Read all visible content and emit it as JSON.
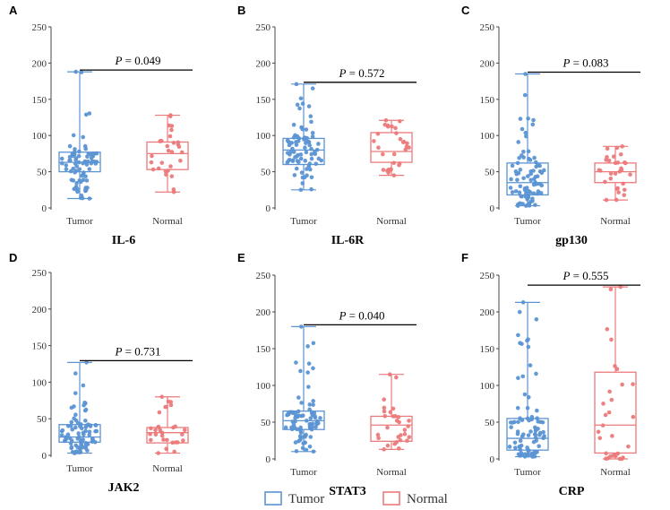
{
  "legend": {
    "items": [
      {
        "label": "Tumor",
        "color": "#5b93d3"
      },
      {
        "label": "Normal",
        "color": "#ec7a7b"
      }
    ]
  },
  "colors": {
    "tumor": "#5b93d3",
    "normal": "#ec7a7b"
  },
  "chart_data": [
    {
      "type": "box",
      "panel": "A",
      "xlabel": "IL-6",
      "categories": [
        "Tumor",
        "Normal"
      ],
      "ylim": [
        0,
        250
      ],
      "yticks": [
        0,
        50,
        100,
        150,
        200,
        250
      ],
      "p_value": "P = 0.049",
      "series": [
        {
          "name": "Tumor",
          "whisker_min": 13,
          "q1": 50,
          "median": 63,
          "q3": 77,
          "whisker_max": 188,
          "n": 80
        },
        {
          "name": "Normal",
          "whisker_min": 22,
          "q1": 53,
          "median": 75,
          "q3": 91,
          "whisker_max": 128,
          "n": 30
        }
      ]
    },
    {
      "type": "box",
      "panel": "B",
      "xlabel": "IL-6R",
      "categories": [
        "Tumor",
        "Normal"
      ],
      "ylim": [
        0,
        250
      ],
      "yticks": [
        0,
        50,
        100,
        150,
        200,
        250
      ],
      "p_value": "P = 0.572",
      "series": [
        {
          "name": "Tumor",
          "whisker_min": 25,
          "q1": 60,
          "median": 80,
          "q3": 96,
          "whisker_max": 171,
          "n": 80
        },
        {
          "name": "Normal",
          "whisker_min": 45,
          "q1": 63,
          "median": 78,
          "q3": 104,
          "whisker_max": 121,
          "n": 30
        }
      ]
    },
    {
      "type": "box",
      "panel": "C",
      "xlabel": "gp130",
      "categories": [
        "Tumor",
        "Normal"
      ],
      "ylim": [
        0,
        250
      ],
      "yticks": [
        0,
        50,
        100,
        150,
        200,
        250
      ],
      "p_value": "P = 0.083",
      "series": [
        {
          "name": "Tumor",
          "whisker_min": 3,
          "q1": 18,
          "median": 35,
          "q3": 62,
          "whisker_max": 185,
          "n": 80
        },
        {
          "name": "Normal",
          "whisker_min": 11,
          "q1": 35,
          "median": 50,
          "q3": 62,
          "whisker_max": 85,
          "n": 30
        }
      ]
    },
    {
      "type": "box",
      "panel": "D",
      "xlabel": "JAK2",
      "categories": [
        "Tumor",
        "Normal"
      ],
      "ylim": [
        0,
        250
      ],
      "yticks": [
        0,
        50,
        100,
        150,
        200,
        250
      ],
      "p_value": "P = 0.731",
      "series": [
        {
          "name": "Tumor",
          "whisker_min": 3,
          "q1": 18,
          "median": 25,
          "q3": 42,
          "whisker_max": 127,
          "n": 80
        },
        {
          "name": "Normal",
          "whisker_min": 3,
          "q1": 17,
          "median": 31,
          "q3": 38,
          "whisker_max": 80,
          "n": 30
        }
      ]
    },
    {
      "type": "box",
      "panel": "E",
      "xlabel": "STAT3",
      "categories": [
        "Tumor",
        "Normal"
      ],
      "ylim": [
        0,
        250
      ],
      "yticks": [
        0,
        50,
        100,
        150,
        200,
        250
      ],
      "p_value": "P = 0.040",
      "series": [
        {
          "name": "Tumor",
          "whisker_min": 10,
          "q1": 40,
          "median": 52,
          "q3": 65,
          "whisker_max": 180,
          "n": 80
        },
        {
          "name": "Normal",
          "whisker_min": 13,
          "q1": 24,
          "median": 46,
          "q3": 58,
          "whisker_max": 115,
          "n": 30
        }
      ]
    },
    {
      "type": "box",
      "panel": "F",
      "xlabel": "CRP",
      "categories": [
        "Tumor",
        "Normal"
      ],
      "ylim": [
        0,
        250
      ],
      "yticks": [
        0,
        50,
        100,
        150,
        200,
        250
      ],
      "p_value": "P = 0.555",
      "series": [
        {
          "name": "Tumor",
          "whisker_min": 3,
          "q1": 12,
          "median": 28,
          "q3": 55,
          "whisker_max": 213,
          "n": 80
        },
        {
          "name": "Normal",
          "whisker_min": 0,
          "q1": 8,
          "median": 46,
          "q3": 118,
          "whisker_max": 234,
          "n": 30
        }
      ]
    }
  ]
}
